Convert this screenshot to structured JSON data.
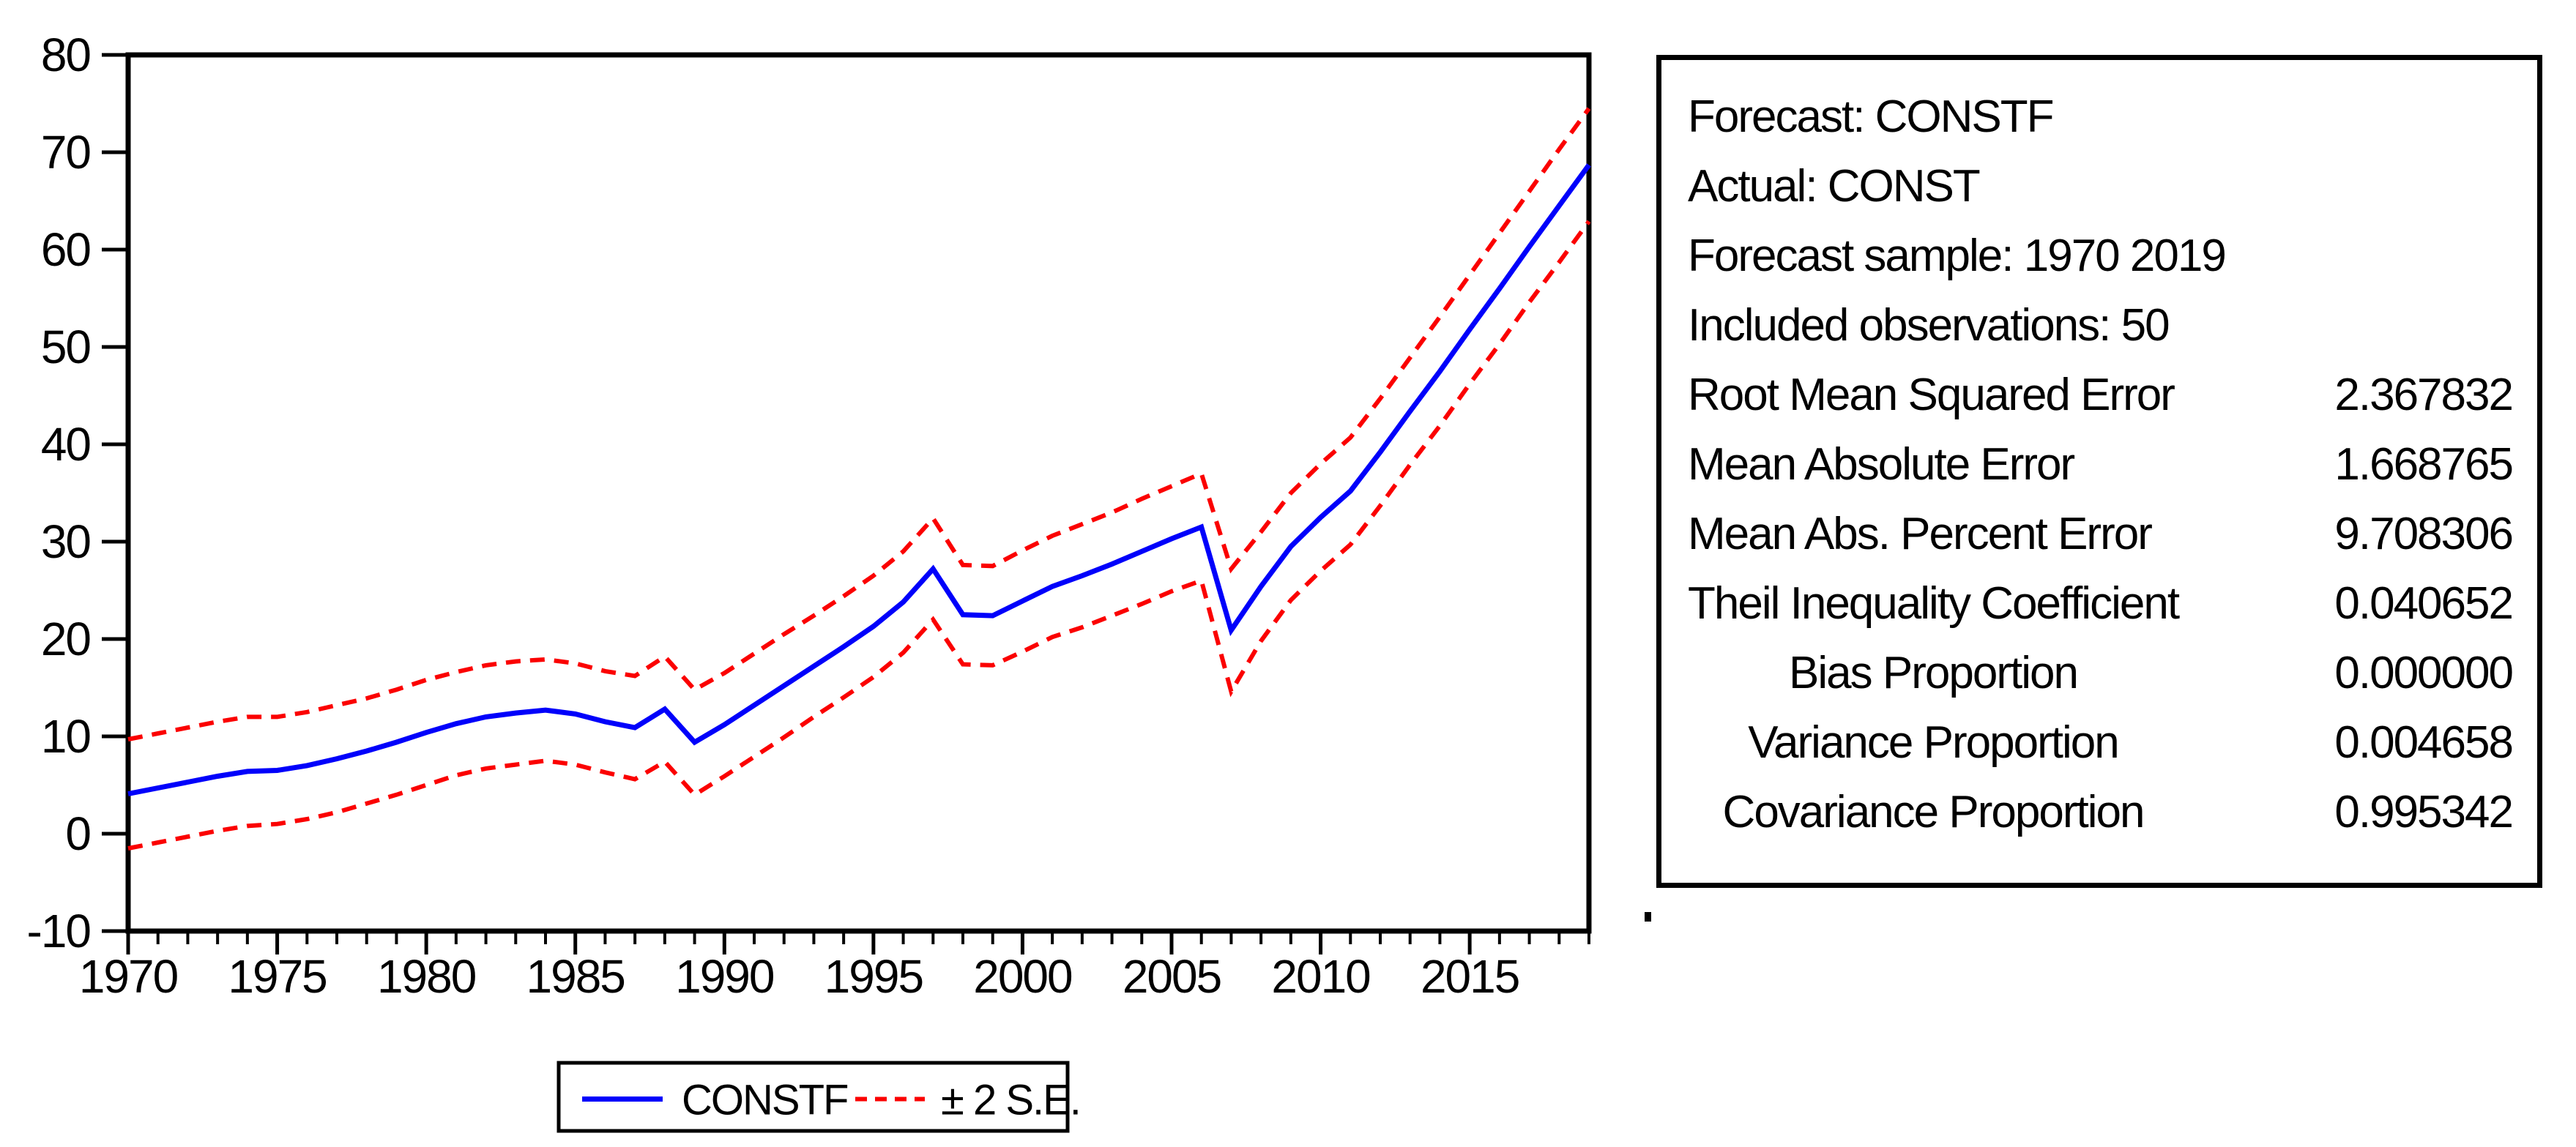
{
  "colors": {
    "forecast_line": "#0000fb",
    "band_line": "#fb0000",
    "axis": "#000000",
    "background": "#ffffff"
  },
  "chart_data": {
    "type": "line",
    "title": "",
    "xlabel": "",
    "ylabel": "",
    "grid": false,
    "legend_position": "bottom",
    "ylim": [
      -10,
      80
    ],
    "yticks": [
      -10,
      0,
      10,
      20,
      30,
      40,
      50,
      60,
      70,
      80
    ],
    "xticks_major": [
      1970,
      1975,
      1980,
      1985,
      1990,
      1995,
      2000,
      2005,
      2010,
      2015
    ],
    "x": [
      1970,
      1971,
      1972,
      1973,
      1974,
      1975,
      1976,
      1977,
      1978,
      1979,
      1980,
      1981,
      1982,
      1983,
      1984,
      1985,
      1986,
      1987,
      1988,
      1989,
      1990,
      1991,
      1992,
      1993,
      1994,
      1995,
      1996,
      1997,
      1998,
      1999,
      2000,
      2001,
      2002,
      2003,
      2004,
      2005,
      2006,
      2007,
      2008,
      2009,
      2010,
      2011,
      2012,
      2013,
      2014,
      2015,
      2016,
      2017,
      2018,
      2019
    ],
    "series": [
      {
        "name": "CONSTF",
        "color": "#0000fb",
        "style": "solid",
        "values": [
          4.1,
          4.7,
          5.3,
          5.9,
          6.4,
          6.5,
          7.0,
          7.7,
          8.5,
          9.4,
          10.4,
          11.3,
          12.0,
          12.4,
          12.7,
          12.3,
          11.5,
          10.9,
          12.8,
          9.4,
          11.2,
          13.2,
          15.2,
          17.2,
          19.2,
          21.3,
          23.8,
          27.2,
          22.5,
          22.4,
          23.9,
          25.4,
          26.5,
          27.7,
          29.0,
          30.3,
          31.5,
          20.9,
          25.4,
          29.5,
          32.5,
          35.2,
          39.2,
          43.4,
          47.5,
          51.8,
          56.0,
          60.3,
          64.5,
          68.7
        ]
      },
      {
        "name": "upper +2 S.E.",
        "color": "#fb0000",
        "style": "dashed",
        "values": [
          9.7,
          10.3,
          10.9,
          11.5,
          12.0,
          12.0,
          12.5,
          13.2,
          13.9,
          14.8,
          15.8,
          16.6,
          17.3,
          17.7,
          17.9,
          17.5,
          16.7,
          16.2,
          18.2,
          14.8,
          16.5,
          18.5,
          20.5,
          22.4,
          24.4,
          26.5,
          29.0,
          32.4,
          27.6,
          27.5,
          29.1,
          30.6,
          31.8,
          33.0,
          34.4,
          35.7,
          37.0,
          27.2,
          31.0,
          35.0,
          38.0,
          40.7,
          44.7,
          48.9,
          53.1,
          57.4,
          61.7,
          66.0,
          70.3,
          74.5
        ]
      },
      {
        "name": "lower -2 S.E.",
        "color": "#fb0000",
        "style": "dashed",
        "values": [
          -1.5,
          -0.9,
          -0.3,
          0.3,
          0.8,
          1.0,
          1.5,
          2.2,
          3.1,
          4.0,
          5.0,
          6.0,
          6.7,
          7.1,
          7.5,
          7.1,
          6.3,
          5.6,
          7.4,
          4.0,
          5.9,
          7.9,
          9.9,
          12.0,
          14.0,
          16.1,
          18.6,
          22.0,
          17.4,
          17.3,
          18.7,
          20.2,
          21.2,
          22.4,
          23.6,
          24.9,
          26.0,
          14.6,
          19.8,
          24.0,
          27.0,
          29.7,
          33.7,
          37.9,
          41.9,
          46.2,
          50.3,
          54.6,
          58.7,
          62.9
        ]
      }
    ],
    "legend": [
      {
        "label": "CONSTF",
        "color": "#0000fb",
        "style": "solid"
      },
      {
        "label": "± 2 S.E.",
        "color": "#fb0000",
        "style": "dashed"
      }
    ]
  },
  "stats_box": {
    "rows": [
      {
        "label": "Forecast: CONSTF",
        "value": ""
      },
      {
        "label": "Actual: CONST",
        "value": ""
      },
      {
        "label": "Forecast sample: 1970 2019",
        "value": ""
      },
      {
        "label": "Included observations: 50",
        "value": ""
      },
      {
        "label": "Root Mean Squared Error",
        "value": "2.367832"
      },
      {
        "label": "Mean Absolute Error",
        "value": "1.668765"
      },
      {
        "label": "Mean Abs. Percent Error",
        "value": "9.708306"
      },
      {
        "label": "Theil Inequality Coefficient",
        "value": "0.040652"
      },
      {
        "label": "Bias Proportion",
        "value": "0.000000"
      },
      {
        "label": "Variance Proportion",
        "value": "0.004658"
      },
      {
        "label": "Covariance Proportion",
        "value": "0.995342"
      }
    ]
  },
  "artifact": {
    "dot": "."
  }
}
